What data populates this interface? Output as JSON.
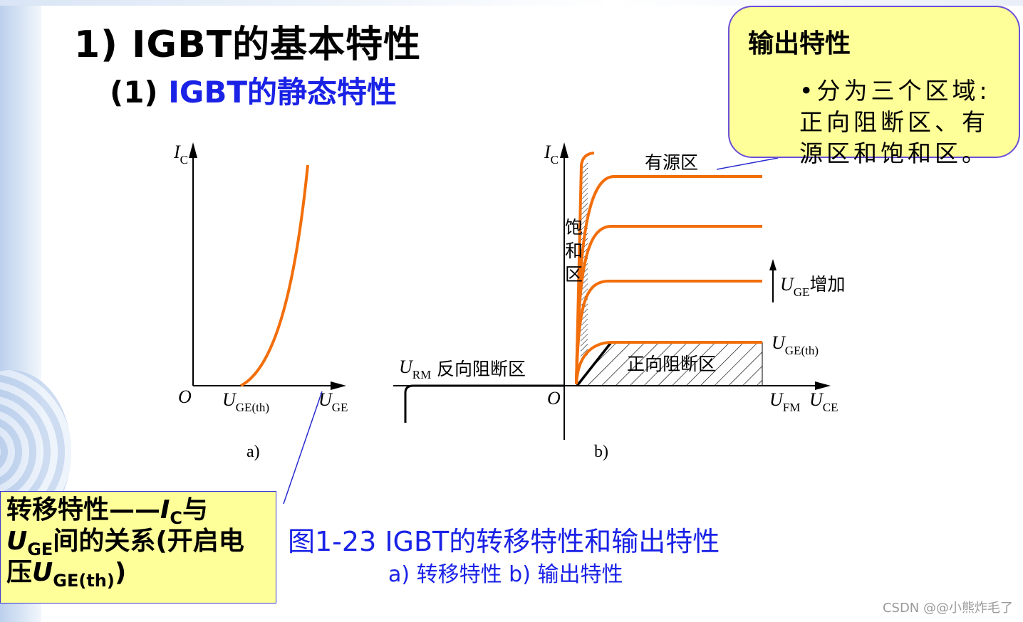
{
  "title": {
    "main": "1) IGBT的基本特性",
    "sub_prefix": "(1) ",
    "sub_highlight": "IGBT的静态特性"
  },
  "callout_output": {
    "heading": "输出特性",
    "body_line1": "•分为三个区域:",
    "body_line2": "正向阻断区、有",
    "body_line3": "源区和饱和区。"
  },
  "callout_transfer": {
    "line1_text": "转移特性——",
    "line1_var": "I",
    "line1_sub": "C",
    "line1_tail": "与",
    "line2_var": "U",
    "line2_sub": "GE",
    "line2_tail": "间的关系(开启电",
    "line3_head": "压",
    "line3_var": "U",
    "line3_sub": "GE(th)",
    "line3_tail": ")"
  },
  "graph_a": {
    "y_axis_var": "I",
    "y_axis_sub": "C",
    "origin": "O",
    "threshold_var": "U",
    "threshold_sub": "GE(th)",
    "x_axis_var": "U",
    "x_axis_sub": "GE",
    "caption": "a)"
  },
  "graph_b": {
    "y_axis_var": "I",
    "y_axis_sub": "C",
    "origin": "O",
    "x_axis_var": "U",
    "x_axis_sub": "CE",
    "ufm_var": "U",
    "ufm_sub": "FM",
    "urm_var": "U",
    "urm_sub": "RM",
    "reverse_block_label": "反向阻断区",
    "forward_block_label": "正向阻断区",
    "active_label": "有源区",
    "saturation_label_1": "饱",
    "saturation_label_2": "和",
    "saturation_label_3": "区",
    "uge_increase_var": "U",
    "uge_increase_sub": "GE",
    "uge_increase_text": "增加",
    "uge_th_var": "U",
    "uge_th_sub": "GE(th)",
    "caption": "b)"
  },
  "figure_caption": {
    "line1": "图1-23  IGBT的转移特性和输出特性",
    "line2": "a) 转移特性  b) 输出特性"
  },
  "watermark": "CSDN @@小熊炸毛了",
  "colors": {
    "curve": "#f26e0a",
    "highlight_blue": "#1a22e6",
    "callout_fill": "#ffff99",
    "callout_border": "#6a4fd8"
  }
}
